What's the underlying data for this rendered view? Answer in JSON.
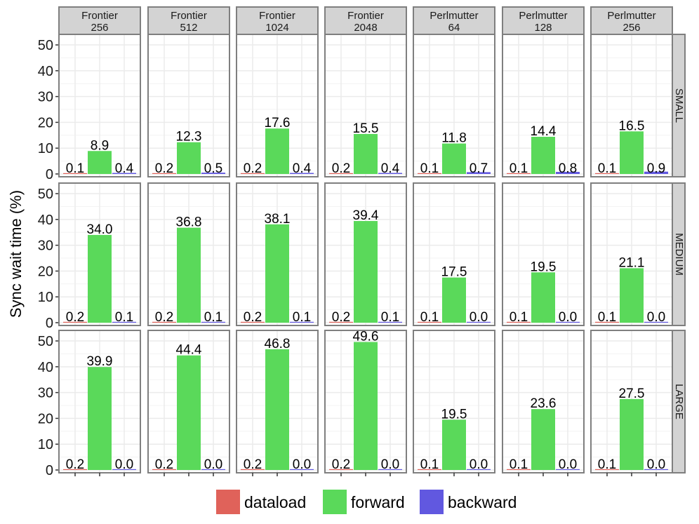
{
  "chart_data": {
    "type": "bar",
    "ylabel": "Sync wait time (%)",
    "xlabel": "",
    "ylim": [
      0,
      53
    ],
    "yticks": [
      0,
      10,
      20,
      30,
      40,
      50
    ],
    "grid": true,
    "legend_position": "bottom",
    "series_names": [
      "dataload",
      "forward",
      "backward"
    ],
    "colors": {
      "dataload": "#E0625A",
      "forward": "#5AD95A",
      "backward": "#6158E0",
      "panel_border": "#7f7f7f",
      "strip_fill": "#d3d3d3",
      "grid": "#ebebeb"
    },
    "columns": [
      {
        "system": "Frontier",
        "nodes": "256"
      },
      {
        "system": "Frontier",
        "nodes": "512"
      },
      {
        "system": "Frontier",
        "nodes": "1024"
      },
      {
        "system": "Frontier",
        "nodes": "2048"
      },
      {
        "system": "Perlmutter",
        "nodes": "64"
      },
      {
        "system": "Perlmutter",
        "nodes": "128"
      },
      {
        "system": "Perlmutter",
        "nodes": "256"
      }
    ],
    "rows": [
      "SMALL",
      "MEDIUM",
      "LARGE"
    ],
    "values": [
      [
        {
          "dataload": 0.1,
          "forward": 8.9,
          "backward": 0.4
        },
        {
          "dataload": 0.2,
          "forward": 12.3,
          "backward": 0.5
        },
        {
          "dataload": 0.2,
          "forward": 17.6,
          "backward": 0.4
        },
        {
          "dataload": 0.2,
          "forward": 15.5,
          "backward": 0.4
        },
        {
          "dataload": 0.1,
          "forward": 11.8,
          "backward": 0.7
        },
        {
          "dataload": 0.1,
          "forward": 14.4,
          "backward": 0.8
        },
        {
          "dataload": 0.1,
          "forward": 16.5,
          "backward": 0.9
        }
      ],
      [
        {
          "dataload": 0.2,
          "forward": 34.0,
          "backward": 0.1
        },
        {
          "dataload": 0.2,
          "forward": 36.8,
          "backward": 0.1
        },
        {
          "dataload": 0.2,
          "forward": 38.1,
          "backward": 0.1
        },
        {
          "dataload": 0.2,
          "forward": 39.4,
          "backward": 0.1
        },
        {
          "dataload": 0.1,
          "forward": 17.5,
          "backward": 0.0
        },
        {
          "dataload": 0.1,
          "forward": 19.5,
          "backward": 0.0
        },
        {
          "dataload": 0.1,
          "forward": 21.1,
          "backward": 0.0
        }
      ],
      [
        {
          "dataload": 0.2,
          "forward": 39.9,
          "backward": 0.0
        },
        {
          "dataload": 0.2,
          "forward": 44.4,
          "backward": 0.0
        },
        {
          "dataload": 0.2,
          "forward": 46.8,
          "backward": 0.0
        },
        {
          "dataload": 0.2,
          "forward": 49.6,
          "backward": 0.0
        },
        {
          "dataload": 0.1,
          "forward": 19.5,
          "backward": 0.0
        },
        {
          "dataload": 0.1,
          "forward": 23.6,
          "backward": 0.0
        },
        {
          "dataload": 0.1,
          "forward": 27.5,
          "backward": 0.0
        }
      ]
    ]
  }
}
